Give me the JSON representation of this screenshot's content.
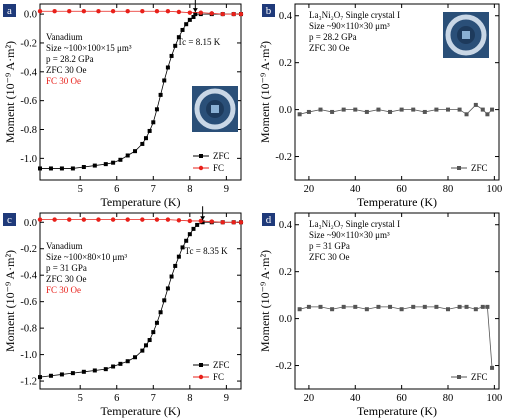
{
  "figure": {
    "panels": [
      {
        "id": "a",
        "chart_data": {
          "type": "scatter",
          "xlabel": "Temperature (K)",
          "ylabel": "Moment (10⁻⁹ A·m²)",
          "xlim": [
            3.9,
            9.4
          ],
          "ylim": [
            -1.15,
            0.07
          ],
          "xticks": [
            5,
            6,
            7,
            8,
            9
          ],
          "xtick_labels": [
            "5",
            "6",
            "7",
            "8",
            "9"
          ],
          "yticks": [
            0.0,
            -0.2,
            -0.4,
            -0.6,
            -0.8,
            -1.0
          ],
          "ytick_labels": [
            "0.0",
            "-0.2",
            "-0.4",
            "-0.6",
            "-0.8",
            "-1.0"
          ],
          "grid": false,
          "legend_position": "bottom-right",
          "annotations": [
            "Vanadium",
            "Size ~100×100×15 μm³",
            "p = 28.2 GPa",
            "ZFC 30 Oe",
            "FC 30 Oe"
          ],
          "tc_label": "Tc = 8.15 K",
          "tc_value": 8.15,
          "series": [
            {
              "name": "ZFC",
              "color": "#000000",
              "marker": "square",
              "x": [
                3.9,
                4.2,
                4.5,
                4.8,
                5.1,
                5.4,
                5.7,
                5.9,
                6.1,
                6.3,
                6.5,
                6.7,
                6.8,
                6.9,
                7.0,
                7.1,
                7.2,
                7.3,
                7.4,
                7.5,
                7.6,
                7.7,
                7.8,
                7.9,
                8.0,
                8.1,
                8.15,
                8.3,
                8.6,
                8.9,
                9.2,
                9.4
              ],
              "y": [
                -1.07,
                -1.07,
                -1.07,
                -1.07,
                -1.06,
                -1.05,
                -1.04,
                -1.03,
                -1.01,
                -0.98,
                -0.95,
                -0.9,
                -0.86,
                -0.81,
                -0.75,
                -0.66,
                -0.56,
                -0.46,
                -0.37,
                -0.29,
                -0.22,
                -0.16,
                -0.11,
                -0.07,
                -0.04,
                -0.02,
                0.0,
                0.0,
                0.0,
                0.0,
                0.0,
                0.0
              ]
            },
            {
              "name": "FC",
              "color": "#e8201a",
              "marker": "circle",
              "x": [
                3.9,
                4.3,
                4.7,
                5.1,
                5.5,
                5.9,
                6.3,
                6.7,
                7.1,
                7.4,
                7.7,
                8.0,
                8.3,
                8.6,
                8.9,
                9.2,
                9.4
              ],
              "y": [
                0.02,
                0.02,
                0.02,
                0.02,
                0.02,
                0.02,
                0.02,
                0.02,
                0.02,
                0.02,
                0.015,
                0.01,
                0.01,
                0.005,
                0.0,
                0.0,
                0.0
              ]
            }
          ]
        }
      },
      {
        "id": "b",
        "chart_data": {
          "type": "scatter",
          "xlabel": "Temperature (K)",
          "ylabel": "Moment (10⁻⁹ A·m²)",
          "xlim": [
            14,
            102
          ],
          "ylim": [
            -0.3,
            0.45
          ],
          "xticks": [
            20,
            40,
            60,
            80,
            100
          ],
          "xtick_labels": [
            "20",
            "40",
            "60",
            "80",
            "100"
          ],
          "yticks": [
            0.4,
            0.2,
            0.0,
            -0.2
          ],
          "ytick_labels": [
            "0.4",
            "0.2",
            "0.0",
            "-0.2"
          ],
          "grid": false,
          "legend_position": "bottom-right",
          "annotations": [
            "La₃Ni₂O₇ Single crystal I",
            "Size ~90×110×30 μm³",
            "p = 28.2 GPa",
            "ZFC 30 Oe"
          ],
          "series": [
            {
              "name": "ZFC",
              "color": "#555555",
              "marker": "square",
              "x": [
                16,
                20,
                25,
                30,
                35,
                40,
                45,
                50,
                55,
                60,
                65,
                70,
                75,
                80,
                85,
                88,
                92,
                95,
                97,
                99
              ],
              "y": [
                -0.02,
                -0.01,
                0.0,
                -0.01,
                0.0,
                0.0,
                -0.01,
                0.0,
                -0.01,
                0.0,
                0.0,
                -0.01,
                0.0,
                0.0,
                0.0,
                -0.02,
                0.02,
                0.0,
                -0.02,
                0.0
              ]
            }
          ]
        }
      },
      {
        "id": "c",
        "chart_data": {
          "type": "scatter",
          "xlabel": "Temperature (K)",
          "ylabel": "Moment (10⁻⁹ A·m²)",
          "xlim": [
            3.9,
            9.4
          ],
          "ylim": [
            -1.26,
            0.07
          ],
          "xticks": [
            5,
            6,
            7,
            8,
            9
          ],
          "xtick_labels": [
            "5",
            "6",
            "7",
            "8",
            "9"
          ],
          "yticks": [
            0.0,
            -0.2,
            -0.4,
            -0.6,
            -0.8,
            -1.0,
            -1.2
          ],
          "ytick_labels": [
            "0.0",
            "-0.2",
            "-0.4",
            "-0.6",
            "-0.8",
            "-1.0",
            "-1.2"
          ],
          "grid": false,
          "legend_position": "bottom-right",
          "annotations": [
            "Vanadium",
            "Size ~100×80×10 μm³",
            "p = 31 GPa",
            "ZFC 30 Oe",
            "FC 30 Oe"
          ],
          "tc_label": "Tc = 8.35 K",
          "tc_value": 8.35,
          "series": [
            {
              "name": "ZFC",
              "color": "#000000",
              "marker": "square",
              "x": [
                3.9,
                4.2,
                4.5,
                4.8,
                5.1,
                5.4,
                5.7,
                5.9,
                6.1,
                6.3,
                6.5,
                6.7,
                6.8,
                6.9,
                7.0,
                7.1,
                7.2,
                7.3,
                7.4,
                7.5,
                7.6,
                7.7,
                7.8,
                7.9,
                8.0,
                8.1,
                8.2,
                8.35,
                8.6,
                8.9,
                9.2,
                9.4
              ],
              "y": [
                -1.17,
                -1.16,
                -1.15,
                -1.14,
                -1.13,
                -1.12,
                -1.11,
                -1.09,
                -1.07,
                -1.05,
                -1.02,
                -0.97,
                -0.93,
                -0.89,
                -0.83,
                -0.76,
                -0.68,
                -0.59,
                -0.5,
                -0.41,
                -0.33,
                -0.26,
                -0.19,
                -0.14,
                -0.09,
                -0.05,
                -0.02,
                0.0,
                0.0,
                0.0,
                0.0,
                0.0
              ]
            },
            {
              "name": "FC",
              "color": "#e8201a",
              "marker": "circle",
              "x": [
                3.9,
                4.3,
                4.7,
                5.1,
                5.5,
                5.9,
                6.3,
                6.7,
                7.1,
                7.4,
                7.7,
                8.0,
                8.3,
                8.6,
                8.9,
                9.2,
                9.4
              ],
              "y": [
                0.02,
                0.02,
                0.02,
                0.02,
                0.02,
                0.02,
                0.02,
                0.02,
                0.02,
                0.02,
                0.015,
                0.01,
                0.01,
                0.005,
                0.0,
                0.0,
                0.0
              ]
            }
          ]
        }
      },
      {
        "id": "d",
        "chart_data": {
          "type": "scatter",
          "xlabel": "Temperature (K)",
          "ylabel": "Moment (10⁻⁹ A·m²)",
          "xlim": [
            14,
            102
          ],
          "ylim": [
            -0.3,
            0.45
          ],
          "xticks": [
            20,
            40,
            60,
            80,
            100
          ],
          "xtick_labels": [
            "20",
            "40",
            "60",
            "80",
            "100"
          ],
          "yticks": [
            0.4,
            0.2,
            0.0,
            -0.2
          ],
          "ytick_labels": [
            "0.4",
            "0.2",
            "0.0",
            "-0.2"
          ],
          "grid": false,
          "legend_position": "bottom-right",
          "annotations": [
            "La₃Ni₂O₇ Single crystal I",
            "Size ~90×110×30 μm³",
            "p = 31 GPa",
            "ZFC 30 Oe"
          ],
          "series": [
            {
              "name": "ZFC",
              "color": "#555555",
              "marker": "square",
              "x": [
                16,
                20,
                25,
                30,
                35,
                40,
                45,
                50,
                55,
                60,
                65,
                70,
                75,
                80,
                85,
                88,
                92,
                95,
                97,
                99
              ],
              "y": [
                0.04,
                0.05,
                0.05,
                0.04,
                0.05,
                0.05,
                0.04,
                0.05,
                0.05,
                0.04,
                0.05,
                0.05,
                0.05,
                0.04,
                0.05,
                0.05,
                0.04,
                0.05,
                0.05,
                -0.21
              ]
            }
          ]
        }
      }
    ]
  }
}
